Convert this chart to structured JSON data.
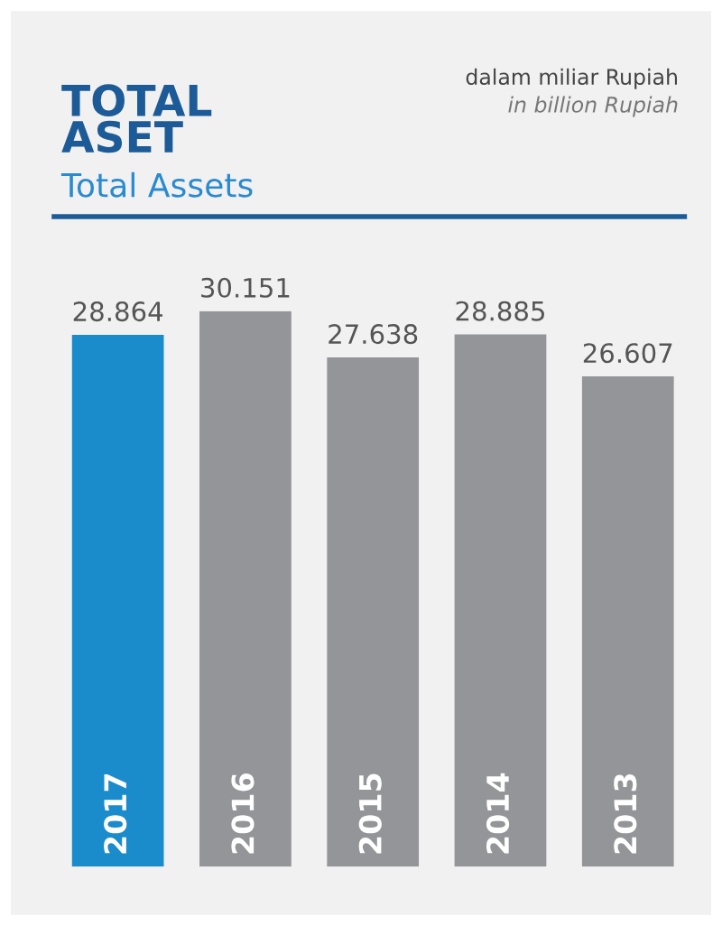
{
  "chart_data": {
    "type": "bar",
    "title": "TOTAL\nASET",
    "subtitle": "Total Assets",
    "annotations": [
      "dalam miliar Rupiah",
      "in billion Rupiah"
    ],
    "categories": [
      "2017",
      "2016",
      "2015",
      "2014",
      "2013"
    ],
    "values": [
      28864,
      30151,
      27638,
      28885,
      26607
    ],
    "value_labels": [
      "28.864",
      "30.151",
      "27.638",
      "28.885",
      "26.607"
    ],
    "colors": [
      "#1a8ccc",
      "#939598",
      "#939598",
      "#939598",
      "#939598"
    ]
  }
}
